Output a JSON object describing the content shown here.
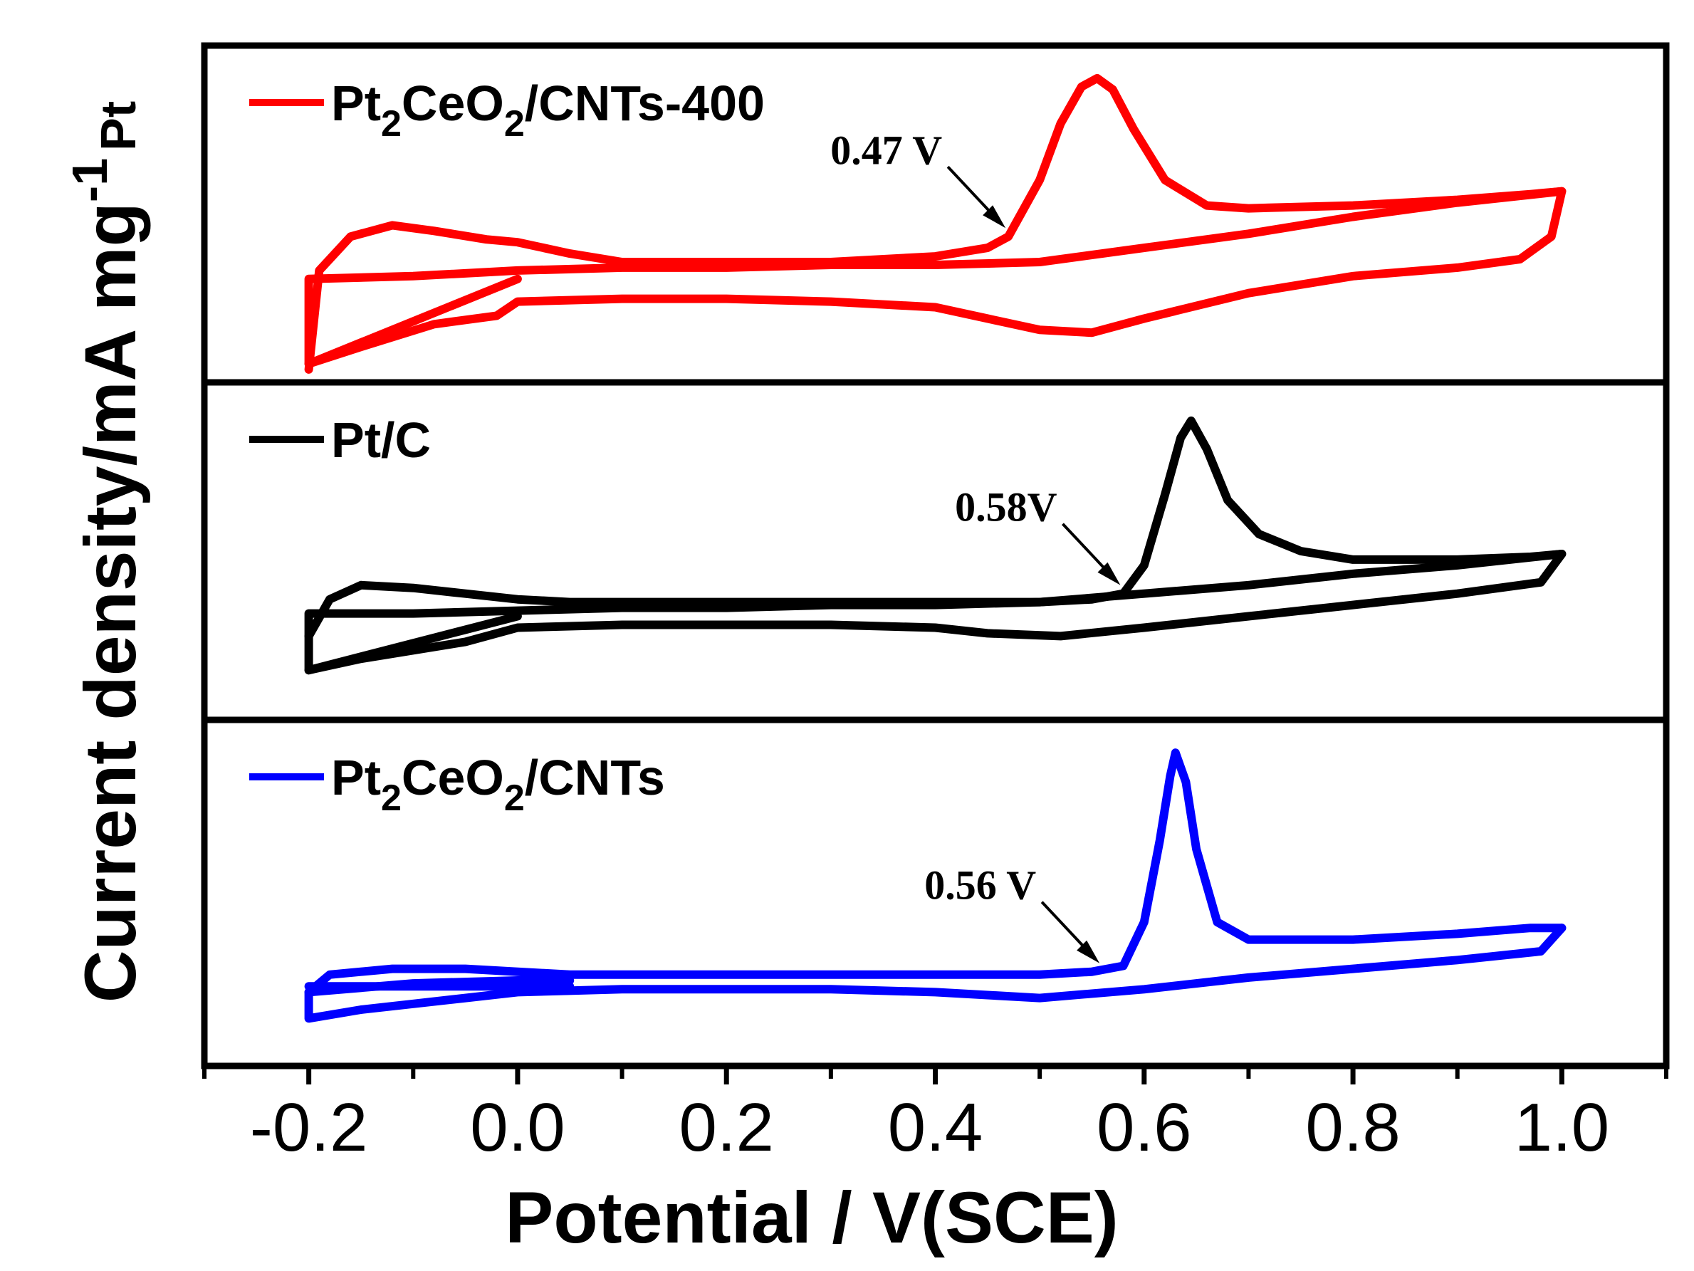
{
  "chart_data": {
    "type": "line",
    "xlabel": "Potential / V(SCE)",
    "ylabel": {
      "main": "Current density/mA mg",
      "sup": "-1",
      "sub": "Pt"
    },
    "xlim": [
      -0.3,
      1.1
    ],
    "x_ticks": [
      "-0.2",
      "0.0",
      "0.2",
      "0.4",
      "0.6",
      "0.8",
      "1.0"
    ],
    "x_tick_values": [
      -0.2,
      0.0,
      0.2,
      0.4,
      0.6,
      0.8,
      1.0
    ],
    "grid": false,
    "legend_placement": "top-left of each panel",
    "panels": [
      {
        "series_name": "Pt2CeO2/CNTs-400",
        "legend_parts": [
          {
            "t": "Pt",
            "s": "normal"
          },
          {
            "t": "2",
            "s": "sub"
          },
          {
            "t": "CeO",
            "s": "normal"
          },
          {
            "t": "2",
            "s": "sub"
          },
          {
            "t": "/CNTs-400",
            "s": "normal"
          }
        ],
        "color": "#ff0000",
        "annotation": "0.47 V",
        "annotation_x": 0.47,
        "ylim": [
          0,
          100
        ],
        "forward": [
          [
            -0.2,
            -5
          ],
          [
            -0.19,
            30
          ],
          [
            -0.16,
            42
          ],
          [
            -0.12,
            46
          ],
          [
            -0.08,
            44
          ],
          [
            -0.03,
            41
          ],
          [
            0.0,
            40
          ],
          [
            0.05,
            36
          ],
          [
            0.1,
            33
          ],
          [
            0.2,
            33
          ],
          [
            0.3,
            33
          ],
          [
            0.4,
            35
          ],
          [
            0.45,
            38
          ],
          [
            0.47,
            42
          ],
          [
            0.5,
            62
          ],
          [
            0.52,
            82
          ],
          [
            0.54,
            95
          ],
          [
            0.555,
            98
          ],
          [
            0.57,
            94
          ],
          [
            0.59,
            80
          ],
          [
            0.62,
            62
          ],
          [
            0.66,
            53
          ],
          [
            0.7,
            52
          ],
          [
            0.8,
            53
          ],
          [
            0.9,
            55
          ],
          [
            0.97,
            57
          ],
          [
            1.0,
            58
          ]
        ],
        "reverse": [
          [
            1.0,
            58
          ],
          [
            0.99,
            42
          ],
          [
            0.96,
            34
          ],
          [
            0.9,
            31
          ],
          [
            0.8,
            28
          ],
          [
            0.7,
            22
          ],
          [
            0.6,
            13
          ],
          [
            0.55,
            8
          ],
          [
            0.5,
            9
          ],
          [
            0.45,
            13
          ],
          [
            0.4,
            17
          ],
          [
            0.3,
            19
          ],
          [
            0.2,
            20
          ],
          [
            0.1,
            20
          ],
          [
            0.0,
            19
          ],
          [
            -0.02,
            14
          ],
          [
            -0.08,
            11
          ],
          [
            -0.15,
            3
          ],
          [
            -0.2,
            -3
          ],
          [
            -0.2,
            27
          ],
          [
            -0.1,
            28
          ],
          [
            0.0,
            30
          ],
          [
            0.1,
            31
          ],
          [
            0.2,
            31
          ],
          [
            0.3,
            32
          ],
          [
            0.4,
            32
          ],
          [
            0.5,
            33
          ],
          [
            0.6,
            38
          ],
          [
            0.7,
            43
          ],
          [
            0.8,
            49
          ],
          [
            0.9,
            54
          ],
          [
            1.0,
            58
          ]
        ],
        "extra": [
          [
            -0.2,
            -3
          ],
          [
            0.0,
            27
          ]
        ]
      },
      {
        "series_name": "Pt/C",
        "legend_parts": [
          {
            "t": "Pt/C",
            "s": "normal"
          }
        ],
        "color": "#000000",
        "annotation": "0.58V",
        "annotation_x": 0.58,
        "ylim": [
          0,
          100
        ],
        "forward": [
          [
            -0.2,
            20
          ],
          [
            -0.18,
            33
          ],
          [
            -0.15,
            38
          ],
          [
            -0.1,
            37
          ],
          [
            -0.05,
            35
          ],
          [
            0.0,
            33
          ],
          [
            0.05,
            32
          ],
          [
            0.1,
            32
          ],
          [
            0.2,
            32
          ],
          [
            0.3,
            32
          ],
          [
            0.4,
            32
          ],
          [
            0.5,
            32
          ],
          [
            0.55,
            33
          ],
          [
            0.58,
            35
          ],
          [
            0.6,
            45
          ],
          [
            0.62,
            70
          ],
          [
            0.635,
            90
          ],
          [
            0.645,
            96
          ],
          [
            0.66,
            86
          ],
          [
            0.68,
            68
          ],
          [
            0.71,
            56
          ],
          [
            0.75,
            50
          ],
          [
            0.8,
            47
          ],
          [
            0.9,
            47
          ],
          [
            0.97,
            48
          ],
          [
            1.0,
            49
          ]
        ],
        "reverse": [
          [
            1.0,
            49
          ],
          [
            0.98,
            39
          ],
          [
            0.9,
            35
          ],
          [
            0.8,
            31
          ],
          [
            0.7,
            27
          ],
          [
            0.6,
            23
          ],
          [
            0.52,
            20
          ],
          [
            0.45,
            21
          ],
          [
            0.4,
            23
          ],
          [
            0.3,
            24
          ],
          [
            0.2,
            24
          ],
          [
            0.1,
            24
          ],
          [
            0.0,
            23
          ],
          [
            -0.05,
            18
          ],
          [
            -0.1,
            15
          ],
          [
            -0.15,
            12
          ],
          [
            -0.2,
            8
          ],
          [
            -0.2,
            28
          ],
          [
            -0.1,
            28
          ],
          [
            0.0,
            29
          ],
          [
            0.1,
            30
          ],
          [
            0.2,
            30
          ],
          [
            0.3,
            31
          ],
          [
            0.4,
            31
          ],
          [
            0.5,
            32
          ],
          [
            0.6,
            35
          ],
          [
            0.7,
            38
          ],
          [
            0.8,
            42
          ],
          [
            0.9,
            45
          ],
          [
            1.0,
            49
          ]
        ],
        "extra": [
          [
            -0.2,
            8
          ],
          [
            0.0,
            27
          ]
        ]
      },
      {
        "series_name": "Pt2CeO2/CNTs",
        "legend_parts": [
          {
            "t": "Pt",
            "s": "normal"
          },
          {
            "t": "2",
            "s": "sub"
          },
          {
            "t": "CeO",
            "s": "normal"
          },
          {
            "t": "2",
            "s": "sub"
          },
          {
            "t": "/CNTs",
            "s": "normal"
          }
        ],
        "color": "#0000ff",
        "annotation": "0.56 V",
        "annotation_x": 0.56,
        "ylim": [
          0,
          100
        ],
        "forward": [
          [
            -0.2,
            16
          ],
          [
            -0.18,
            22
          ],
          [
            -0.12,
            24
          ],
          [
            -0.05,
            24
          ],
          [
            0.0,
            23
          ],
          [
            0.05,
            22
          ],
          [
            0.1,
            22
          ],
          [
            0.2,
            22
          ],
          [
            0.3,
            22
          ],
          [
            0.4,
            22
          ],
          [
            0.5,
            22
          ],
          [
            0.55,
            23
          ],
          [
            0.58,
            25
          ],
          [
            0.6,
            40
          ],
          [
            0.615,
            68
          ],
          [
            0.625,
            90
          ],
          [
            0.63,
            98
          ],
          [
            0.64,
            88
          ],
          [
            0.65,
            65
          ],
          [
            0.67,
            40
          ],
          [
            0.7,
            34
          ],
          [
            0.8,
            34
          ],
          [
            0.9,
            36
          ],
          [
            0.97,
            38
          ],
          [
            1.0,
            38
          ]
        ],
        "reverse": [
          [
            1.0,
            38
          ],
          [
            0.98,
            30
          ],
          [
            0.9,
            27
          ],
          [
            0.8,
            24
          ],
          [
            0.7,
            21
          ],
          [
            0.6,
            17
          ],
          [
            0.5,
            14
          ],
          [
            0.45,
            15
          ],
          [
            0.4,
            16
          ],
          [
            0.3,
            17
          ],
          [
            0.2,
            17
          ],
          [
            0.1,
            17
          ],
          [
            0.0,
            16
          ],
          [
            -0.05,
            14
          ],
          [
            -0.1,
            12
          ],
          [
            -0.15,
            10
          ],
          [
            -0.2,
            7
          ],
          [
            -0.2,
            16
          ],
          [
            -0.1,
            19
          ],
          [
            0.0,
            20
          ],
          [
            0.05,
            20
          ]
        ],
        "extra": [
          [
            -0.2,
            18
          ],
          [
            0.05,
            18
          ]
        ]
      }
    ]
  }
}
